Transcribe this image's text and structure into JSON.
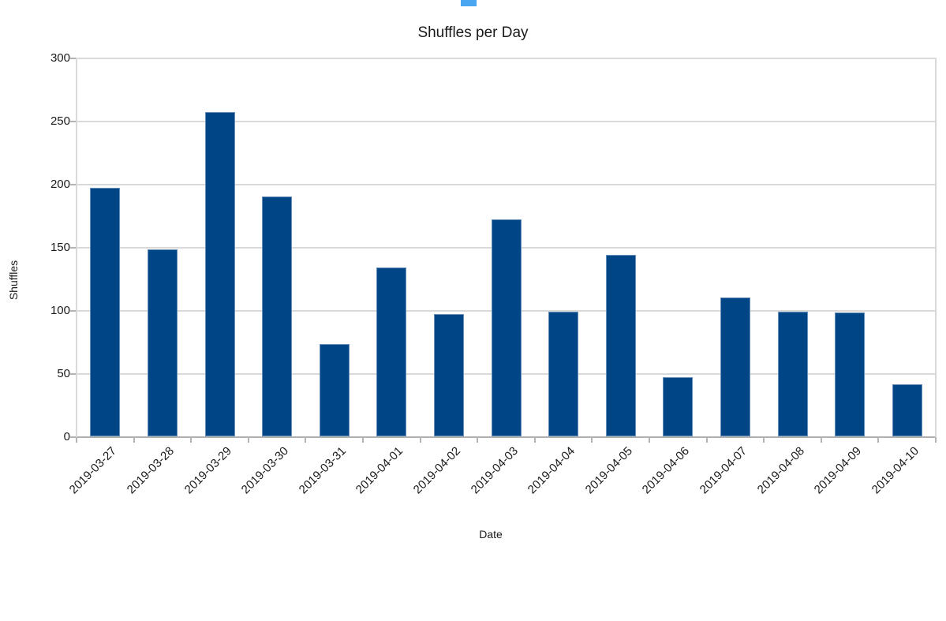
{
  "page": {
    "artifact_color": "#4BA6F2"
  },
  "chart_data": {
    "type": "bar",
    "title": "Shuffles per Day",
    "xlabel": "Date",
    "ylabel": "Shuffles",
    "categories": [
      "2019-03-27",
      "2019-03-28",
      "2019-03-29",
      "2019-03-30",
      "2019-03-31",
      "2019-04-01",
      "2019-04-02",
      "2019-04-03",
      "2019-04-04",
      "2019-04-05",
      "2019-04-06",
      "2019-04-07",
      "2019-04-08",
      "2019-04-09",
      "2019-04-10"
    ],
    "values": [
      197,
      148,
      257,
      190,
      73,
      134,
      97,
      172,
      99,
      144,
      47,
      110,
      99,
      98,
      41
    ],
    "ylim": [
      0,
      300
    ],
    "yticks": [
      0,
      50,
      100,
      150,
      200,
      250,
      300
    ],
    "bar_color": "#004586",
    "grid": "horizontal",
    "legend": "none"
  }
}
